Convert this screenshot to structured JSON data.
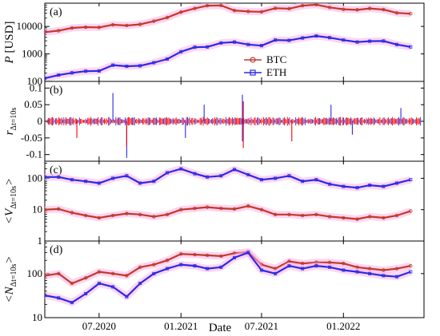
{
  "colors": {
    "btc": "#c0392b",
    "eth": "#2a2ae6",
    "btc_return": "#ff0000",
    "band": "#ffb3e6",
    "axis": "#000000"
  },
  "chart_data": {
    "type": "line",
    "xlabel": "Date",
    "x_ticks": [
      "07.2020",
      "01.2021",
      "07.2021",
      "01.2022"
    ],
    "x_tick_positions": [
      "2020-07-01",
      "2021-01-01",
      "2021-07-01",
      "2022-01-01"
    ],
    "x_range": [
      "2020-03-01",
      "2022-07-01"
    ],
    "legend": {
      "entries": [
        "BTC",
        "ETH"
      ],
      "placement": "inside panel (a), center"
    },
    "panels": [
      {
        "tag": "(a)",
        "ylabel": {
          "main": "P",
          "sub": "",
          "suffix": " [USD]"
        },
        "yscale": "log",
        "ylim": [
          100,
          70000
        ],
        "y_ticks": [
          "100",
          "1000",
          "10000"
        ],
        "y_tick_values": [
          100,
          1000,
          10000
        ],
        "series": [
          {
            "name": "BTC",
            "color_key": "btc",
            "x": [
              "2020-03-01",
              "2020-04-01",
              "2020-05-01",
              "2020-06-01",
              "2020-07-01",
              "2020-08-01",
              "2020-09-01",
              "2020-10-01",
              "2020-11-01",
              "2020-12-01",
              "2021-01-01",
              "2021-02-01",
              "2021-03-01",
              "2021-04-01",
              "2021-05-01",
              "2021-06-01",
              "2021-07-01",
              "2021-08-01",
              "2021-09-01",
              "2021-10-01",
              "2021-11-01",
              "2021-12-01",
              "2022-01-01",
              "2022-02-01",
              "2022-03-01",
              "2022-04-01",
              "2022-05-01",
              "2022-06-01"
            ],
            "y": [
              6200,
              7000,
              8800,
              9400,
              9200,
              11500,
              10800,
              11900,
              15500,
              21000,
              33000,
              45000,
              57000,
              58000,
              38000,
              35000,
              34000,
              46000,
              44000,
              57000,
              62000,
              49000,
              42000,
              40000,
              45000,
              41000,
              31000,
              29000
            ]
          },
          {
            "name": "ETH",
            "color_key": "eth",
            "x": [
              "2020-03-01",
              "2020-04-01",
              "2020-05-01",
              "2020-06-01",
              "2020-07-01",
              "2020-08-01",
              "2020-09-01",
              "2020-10-01",
              "2020-11-01",
              "2020-12-01",
              "2021-01-01",
              "2021-02-01",
              "2021-03-01",
              "2021-04-01",
              "2021-05-01",
              "2021-06-01",
              "2021-07-01",
              "2021-08-01",
              "2021-09-01",
              "2021-10-01",
              "2021-11-01",
              "2021-12-01",
              "2022-01-01",
              "2022-02-01",
              "2022-03-01",
              "2022-04-01",
              "2022-05-01",
              "2022-06-01"
            ],
            "y": [
              130,
              170,
              205,
              235,
              240,
              390,
              355,
              370,
              480,
              650,
              1200,
              1750,
              1800,
              2500,
              2700,
              2200,
              2000,
              3200,
              3100,
              3800,
              4500,
              3900,
              3200,
              2700,
              2900,
              2950,
              2200,
              1800
            ]
          }
        ]
      },
      {
        "tag": "(b)",
        "ylabel": {
          "main": "r",
          "sub": "Δt=10s",
          "suffix": ""
        },
        "yscale": "linear",
        "ylim": [
          -0.12,
          0.12
        ],
        "y_ticks": [
          "0.1",
          "0.05",
          "0",
          "-0.05",
          "-0.1"
        ],
        "y_tick_values": [
          0.1,
          0.05,
          0,
          -0.05,
          -0.1
        ],
        "spikes": [
          {
            "x": "2020-09-01",
            "y": -0.11,
            "color_key": "eth"
          },
          {
            "x": "2020-09-01",
            "y": -0.075,
            "color_key": "btc_return"
          },
          {
            "x": "2020-08-01",
            "y": 0.085,
            "color_key": "eth"
          },
          {
            "x": "2021-05-19",
            "y": 0.08,
            "color_key": "eth"
          },
          {
            "x": "2021-05-19",
            "y": -0.06,
            "color_key": "eth"
          },
          {
            "x": "2021-05-21",
            "y": 0.06,
            "color_key": "btc_return"
          },
          {
            "x": "2021-05-21",
            "y": -0.08,
            "color_key": "btc_return"
          },
          {
            "x": "2021-01-11",
            "y": -0.05,
            "color_key": "eth"
          },
          {
            "x": "2021-02-22",
            "y": 0.05,
            "color_key": "eth"
          },
          {
            "x": "2021-09-07",
            "y": -0.06,
            "color_key": "btc_return"
          },
          {
            "x": "2021-12-04",
            "y": 0.05,
            "color_key": "eth"
          },
          {
            "x": "2022-01-21",
            "y": -0.04,
            "color_key": "eth"
          },
          {
            "x": "2020-05-12",
            "y": -0.05,
            "color_key": "btc_return"
          },
          {
            "x": "2022-05-10",
            "y": 0.04,
            "color_key": "eth"
          }
        ]
      },
      {
        "tag": "(c)",
        "ylabel": {
          "main": "<V",
          "sub": "Δt=10s",
          "suffix": ">"
        },
        "yscale": "log",
        "ylim": [
          1,
          350
        ],
        "y_ticks": [
          "1",
          "10",
          "100"
        ],
        "y_tick_values": [
          1,
          10,
          100
        ],
        "series": [
          {
            "name": "BTC",
            "color_key": "btc",
            "x": [
              "2020-03-01",
              "2020-04-01",
              "2020-05-01",
              "2020-06-01",
              "2020-07-01",
              "2020-08-01",
              "2020-09-01",
              "2020-10-01",
              "2020-11-01",
              "2020-12-01",
              "2021-01-01",
              "2021-02-01",
              "2021-03-01",
              "2021-04-01",
              "2021-05-01",
              "2021-06-01",
              "2021-07-01",
              "2021-08-01",
              "2021-09-01",
              "2021-10-01",
              "2021-11-01",
              "2021-12-01",
              "2022-01-01",
              "2022-02-01",
              "2022-03-01",
              "2022-04-01",
              "2022-05-01",
              "2022-06-01"
            ],
            "y": [
              10,
              10.5,
              8,
              6.5,
              5.5,
              6.5,
              7.5,
              7,
              6,
              7,
              10,
              11,
              12,
              11,
              10.5,
              13,
              10,
              7,
              7,
              6.5,
              7,
              6,
              5.5,
              5,
              6,
              5.5,
              6.5,
              9
            ]
          },
          {
            "name": "ETH",
            "color_key": "eth",
            "x": [
              "2020-03-01",
              "2020-04-01",
              "2020-05-01",
              "2020-06-01",
              "2020-07-01",
              "2020-08-01",
              "2020-09-01",
              "2020-10-01",
              "2020-11-01",
              "2020-12-01",
              "2021-01-01",
              "2021-02-01",
              "2021-03-01",
              "2021-04-01",
              "2021-05-01",
              "2021-06-01",
              "2021-07-01",
              "2021-08-01",
              "2021-09-01",
              "2021-10-01",
              "2021-11-01",
              "2021-12-01",
              "2022-01-01",
              "2022-02-01",
              "2022-03-01",
              "2022-04-01",
              "2022-05-01",
              "2022-06-01"
            ],
            "y": [
              110,
              110,
              90,
              80,
              70,
              100,
              120,
              70,
              80,
              150,
              200,
              140,
              110,
              120,
              190,
              130,
              90,
              100,
              120,
              80,
              90,
              65,
              55,
              50,
              60,
              55,
              70,
              90
            ]
          }
        ]
      },
      {
        "tag": "(d)",
        "ylabel": {
          "main": "<N",
          "sub": "Δt=10s",
          "suffix": ">"
        },
        "yscale": "log",
        "ylim": [
          10,
          550
        ],
        "y_ticks": [
          "10",
          "100"
        ],
        "y_tick_values": [
          10,
          100
        ],
        "series": [
          {
            "name": "BTC",
            "color_key": "btc",
            "x": [
              "2020-03-01",
              "2020-04-01",
              "2020-05-01",
              "2020-06-01",
              "2020-07-01",
              "2020-08-01",
              "2020-09-01",
              "2020-10-01",
              "2020-11-01",
              "2020-12-01",
              "2021-01-01",
              "2021-02-01",
              "2021-03-01",
              "2021-04-01",
              "2021-05-01",
              "2021-06-01",
              "2021-07-01",
              "2021-08-01",
              "2021-09-01",
              "2021-10-01",
              "2021-11-01",
              "2021-12-01",
              "2022-01-01",
              "2022-02-01",
              "2022-03-01",
              "2022-04-01",
              "2022-05-01",
              "2022-06-01"
            ],
            "y": [
              90,
              100,
              60,
              80,
              110,
              100,
              90,
              140,
              160,
              200,
              280,
              270,
              260,
              250,
              290,
              310,
              160,
              130,
              190,
              170,
              180,
              180,
              170,
              140,
              130,
              120,
              130,
              150
            ]
          },
          {
            "name": "ETH",
            "color_key": "eth",
            "x": [
              "2020-03-01",
              "2020-04-01",
              "2020-05-01",
              "2020-06-01",
              "2020-07-01",
              "2020-08-01",
              "2020-09-01",
              "2020-10-01",
              "2020-11-01",
              "2020-12-01",
              "2021-01-01",
              "2021-02-01",
              "2021-03-01",
              "2021-04-01",
              "2021-05-01",
              "2021-06-01",
              "2021-07-01",
              "2021-08-01",
              "2021-09-01",
              "2021-10-01",
              "2021-11-01",
              "2021-12-01",
              "2022-01-01",
              "2022-02-01",
              "2022-03-01",
              "2022-04-01",
              "2022-05-01",
              "2022-06-01"
            ],
            "y": [
              32,
              28,
              22,
              35,
              60,
              50,
              30,
              60,
              100,
              130,
              160,
              150,
              130,
              140,
              230,
              300,
              120,
              100,
              150,
              130,
              150,
              140,
              120,
              110,
              100,
              90,
              85,
              110
            ]
          }
        ]
      }
    ]
  }
}
